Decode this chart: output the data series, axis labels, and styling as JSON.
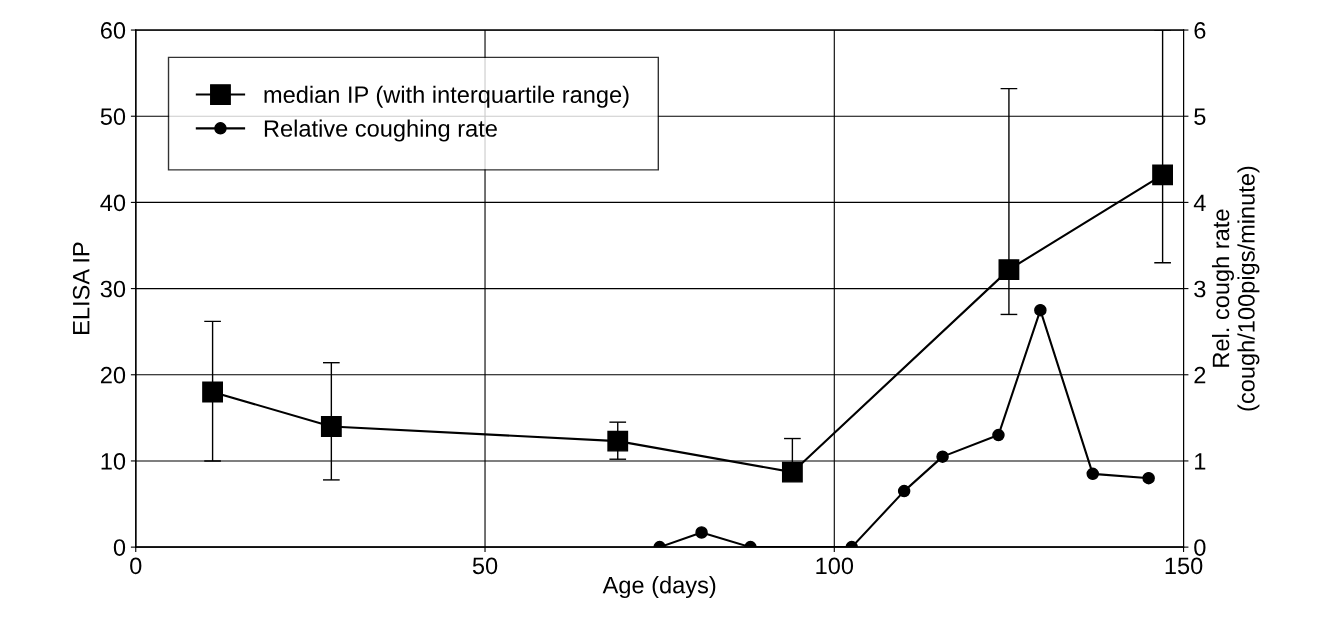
{
  "chart_data": {
    "type": "line",
    "xlabel": "Age (days)",
    "ylabel": "ELISA IP",
    "y2label": "Rel. cough rate\n(cough/100pigs/minute)",
    "xlim": [
      0,
      150
    ],
    "xticks": [
      0,
      50,
      100,
      150
    ],
    "ylim": [
      0,
      60
    ],
    "yticks": [
      0,
      10,
      20,
      30,
      40,
      50,
      60
    ],
    "y2lim": [
      0,
      6
    ],
    "y2ticks": [
      0,
      1,
      2,
      3,
      4,
      5,
      6
    ],
    "grid": true,
    "legend": "top left",
    "series": [
      {
        "name": "median IP (with interquartile range)",
        "color": "#000000",
        "marker": "square",
        "x": [
          11,
          28,
          69,
          94,
          125,
          147
        ],
        "values": [
          18,
          14,
          12.3,
          8.7,
          32.2,
          43.2
        ],
        "errors": [
          [
            10,
            26.2
          ],
          [
            7.8,
            21.4
          ],
          [
            10.2,
            14.5
          ],
          [
            8.7,
            12.6
          ],
          [
            27,
            53.2
          ],
          [
            33,
            60
          ]
        ]
      },
      {
        "name": "Relative coughing rate",
        "color": "#000000",
        "marker": "circle",
        "axis": "y2",
        "x": [
          75,
          81,
          88,
          102.5,
          110,
          115.5,
          123.5,
          129.5,
          137,
          145
        ],
        "values": [
          0,
          0.17,
          0,
          0,
          0.65,
          1.05,
          1.3,
          2.75,
          0.85,
          0.8
        ]
      }
    ]
  }
}
